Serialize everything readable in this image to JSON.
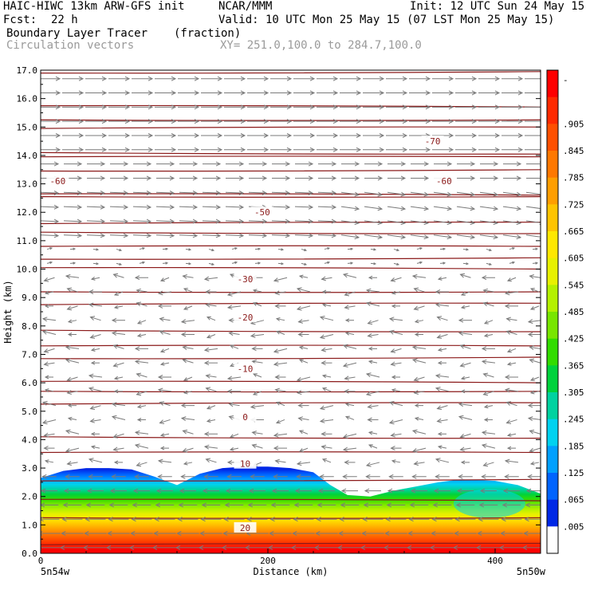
{
  "header": {
    "model": "HAIC-HIWC 13km ARW-GFS init",
    "org": "NCAR/MMM",
    "init": "Init: 12 UTC Sun 24 May 15",
    "fcst_label": "Fcst:",
    "fcst_value": "22 h",
    "valid": "Valid: 10 UTC Mon 25 May 15 (07 LST Mon 25 May 15)",
    "field": "Boundary Layer Tracer",
    "field_units": "(fraction)",
    "overlay": "Circulation vectors",
    "xy_range": "XY= 251.0,100.0 to 284.7,100.0"
  },
  "chart_data": {
    "type": "heatmap",
    "description_field": "Boundary Layer Tracer (fraction) cross-section",
    "xlabel": "Distance (km)",
    "ylabel": "Height (km)",
    "xlim": [
      0,
      440
    ],
    "ylim": [
      0,
      17
    ],
    "x_ticks": [
      "0",
      "200",
      "400"
    ],
    "x_corner_labels": [
      "5n54w",
      "5n50w"
    ],
    "y_ticks": [
      "0.0",
      "1.0",
      "2.0",
      "3.0",
      "4.0",
      "5.0",
      "6.0",
      "7.0",
      "8.0",
      "9.0",
      "10.0",
      "11.0",
      "12.0",
      "13.0",
      "14.0",
      "15.0",
      "16.0",
      "17.0"
    ],
    "colorbar": {
      "levels": [
        "-",
        ".905",
        ".845",
        ".785",
        ".725",
        ".665",
        ".605",
        ".545",
        ".485",
        ".425",
        ".365",
        ".305",
        ".245",
        ".185",
        ".125",
        ".065",
        ".005"
      ],
      "colors": [
        "#ff0000",
        "#ff2a00",
        "#ff5000",
        "#ff7800",
        "#ff9e00",
        "#ffc400",
        "#ffe800",
        "#e8f000",
        "#b4f000",
        "#78e600",
        "#32dc00",
        "#00d23c",
        "#00d2a0",
        "#00d2f0",
        "#00a0ff",
        "#0064ff",
        "#0028e6",
        "#ffffff"
      ]
    },
    "tracer_top_km": [
      [
        0,
        2.65
      ],
      [
        20,
        2.9
      ],
      [
        40,
        3.0
      ],
      [
        60,
        3.0
      ],
      [
        80,
        2.95
      ],
      [
        100,
        2.7
      ],
      [
        120,
        2.4
      ],
      [
        140,
        2.8
      ],
      [
        160,
        3.0
      ],
      [
        180,
        3.05
      ],
      [
        200,
        3.05
      ],
      [
        220,
        3.0
      ],
      [
        240,
        2.85
      ],
      [
        255,
        2.4
      ],
      [
        270,
        2.05
      ],
      [
        290,
        2.0
      ],
      [
        310,
        2.2
      ],
      [
        330,
        2.35
      ],
      [
        350,
        2.5
      ],
      [
        370,
        2.6
      ],
      [
        400,
        2.55
      ],
      [
        420,
        2.4
      ],
      [
        440,
        2.1
      ]
    ],
    "isotherms": [
      {
        "label": "20",
        "x": 180,
        "y": [
          0.95,
          0.9,
          0.9,
          0.9,
          0.88
        ]
      },
      {
        "label": "10",
        "x": 180,
        "y": [
          3.1,
          3.1,
          3.15,
          3.15,
          3.15
        ]
      },
      {
        "label": "0",
        "x": 180,
        "y": [
          4.85,
          4.85,
          4.8,
          4.8,
          4.8
        ]
      },
      {
        "label": "-10",
        "x": 180,
        "y": [
          6.5,
          6.5,
          6.5,
          6.5,
          6.55
        ]
      },
      {
        "label": "-20",
        "x": 180,
        "y": [
          8.3,
          8.3,
          8.3,
          8.25,
          8.25
        ]
      },
      {
        "label": "-30",
        "x": 180,
        "y": [
          9.6,
          9.65,
          9.65,
          9.6,
          9.6
        ]
      },
      {
        "label": "-50",
        "x": 195,
        "y": [
          12.1,
          12.0,
          12.0,
          11.95,
          11.95
        ]
      },
      {
        "label": "-60",
        "x": 15,
        "y": [
          13.2,
          13.15,
          13.1,
          13.0,
          12.9
        ]
      },
      {
        "label": "-60",
        "x": 355,
        "y": [
          13.2,
          13.15,
          13.1,
          13.0,
          12.9
        ]
      },
      {
        "label": "-70",
        "x": 345,
        "y": [
          14.5,
          14.5,
          14.5,
          14.45,
          14.45
        ]
      }
    ],
    "theta_lines_km": [
      0.3,
      1.25,
      1.9,
      2.55,
      3.55,
      4.1,
      5.25,
      5.7,
      6.05,
      6.85,
      7.3,
      7.85,
      8.75,
      9.2,
      10.05,
      10.35,
      10.8,
      11.3,
      11.6,
      12.55,
      12.65,
      13.45,
      13.95,
      14.1,
      14.95,
      15.25,
      15.75,
      16.9
    ],
    "vectors": "circulation vectors: westerly (rightward) flow above ~11 km, weak easterly (leftward) flow below ~10 km, strong easterly near the surface"
  }
}
